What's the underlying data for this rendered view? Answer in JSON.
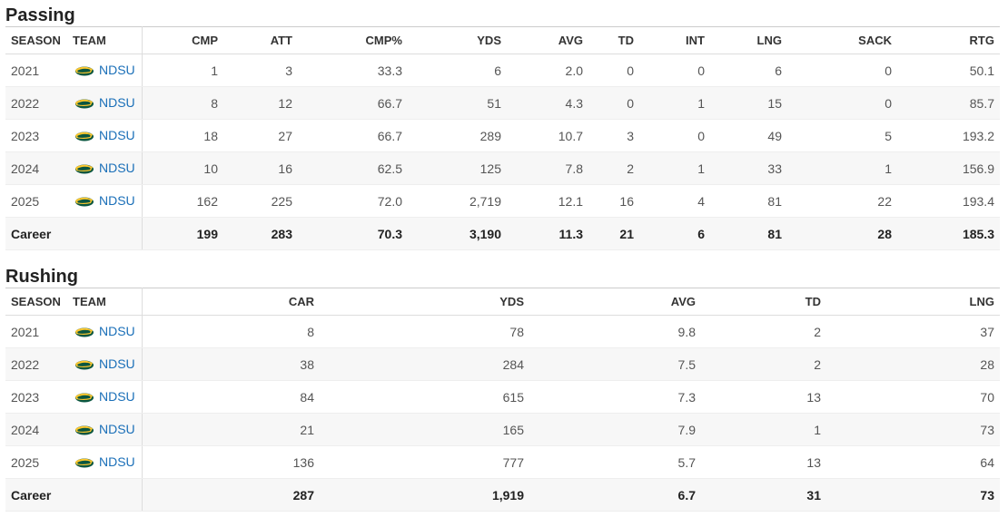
{
  "passing": {
    "title": "Passing",
    "headers": {
      "season": "SEASON",
      "team": "TEAM",
      "cmp": "CMP",
      "att": "ATT",
      "cmp_pct": "CMP%",
      "yds": "YDS",
      "avg": "AVG",
      "td": "TD",
      "int": "INT",
      "lng": "LNG",
      "sack": "SACK",
      "rtg": "RTG"
    },
    "rows": [
      {
        "season": "2021",
        "team": "NDSU",
        "cmp": "1",
        "att": "3",
        "cmp_pct": "33.3",
        "yds": "6",
        "avg": "2.0",
        "td": "0",
        "int": "0",
        "lng": "6",
        "sack": "0",
        "rtg": "50.1"
      },
      {
        "season": "2022",
        "team": "NDSU",
        "cmp": "8",
        "att": "12",
        "cmp_pct": "66.7",
        "yds": "51",
        "avg": "4.3",
        "td": "0",
        "int": "1",
        "lng": "15",
        "sack": "0",
        "rtg": "85.7"
      },
      {
        "season": "2023",
        "team": "NDSU",
        "cmp": "18",
        "att": "27",
        "cmp_pct": "66.7",
        "yds": "289",
        "avg": "10.7",
        "td": "3",
        "int": "0",
        "lng": "49",
        "sack": "5",
        "rtg": "193.2"
      },
      {
        "season": "2024",
        "team": "NDSU",
        "cmp": "10",
        "att": "16",
        "cmp_pct": "62.5",
        "yds": "125",
        "avg": "7.8",
        "td": "2",
        "int": "1",
        "lng": "33",
        "sack": "1",
        "rtg": "156.9"
      },
      {
        "season": "2025",
        "team": "NDSU",
        "cmp": "162",
        "att": "225",
        "cmp_pct": "72.0",
        "yds": "2,719",
        "avg": "12.1",
        "td": "16",
        "int": "4",
        "lng": "81",
        "sack": "22",
        "rtg": "193.4"
      }
    ],
    "career": {
      "label": "Career",
      "cmp": "199",
      "att": "283",
      "cmp_pct": "70.3",
      "yds": "3,190",
      "avg": "11.3",
      "td": "21",
      "int": "6",
      "lng": "81",
      "sack": "28",
      "rtg": "185.3"
    }
  },
  "rushing": {
    "title": "Rushing",
    "headers": {
      "season": "SEASON",
      "team": "TEAM",
      "car": "CAR",
      "yds": "YDS",
      "avg": "AVG",
      "td": "TD",
      "lng": "LNG"
    },
    "rows": [
      {
        "season": "2021",
        "team": "NDSU",
        "car": "8",
        "yds": "78",
        "avg": "9.8",
        "td": "2",
        "lng": "37"
      },
      {
        "season": "2022",
        "team": "NDSU",
        "car": "38",
        "yds": "284",
        "avg": "7.5",
        "td": "2",
        "lng": "28"
      },
      {
        "season": "2023",
        "team": "NDSU",
        "car": "84",
        "yds": "615",
        "avg": "7.3",
        "td": "13",
        "lng": "70"
      },
      {
        "season": "2024",
        "team": "NDSU",
        "car": "21",
        "yds": "165",
        "avg": "7.9",
        "td": "1",
        "lng": "73"
      },
      {
        "season": "2025",
        "team": "NDSU",
        "car": "136",
        "yds": "777",
        "avg": "5.7",
        "td": "13",
        "lng": "64"
      }
    ],
    "career": {
      "label": "Career",
      "car": "287",
      "yds": "1,919",
      "avg": "6.7",
      "td": "31",
      "lng": "73"
    }
  },
  "team_logo_icon": "bison-logo-icon",
  "colors": {
    "link": "#1a6fb8",
    "logo_green": "#0a5640",
    "logo_yellow": "#ffc82e"
  }
}
